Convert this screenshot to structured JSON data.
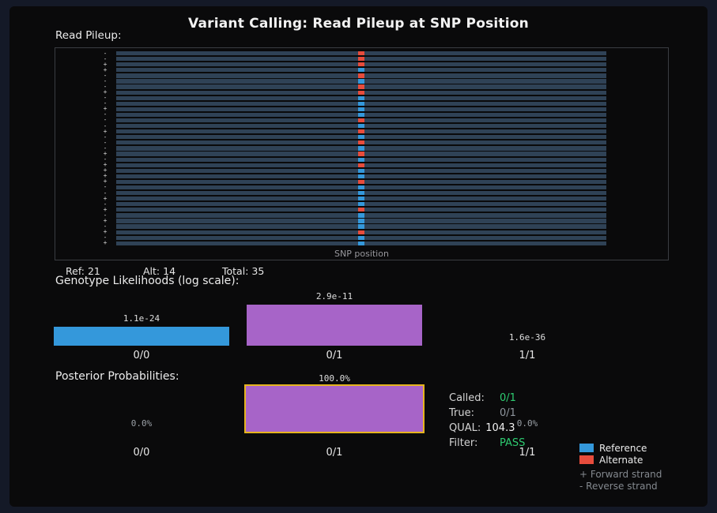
{
  "title": "Variant Calling: Read Pileup at SNP Position",
  "colors": {
    "background": "#141927",
    "panel": "#0a0a0b",
    "read_bar": "#2f4256",
    "reference_blue": "#3498db",
    "alternate_red": "#e74c3c",
    "het_purple": "#a764c8",
    "highlight_gold": "#e6b41e",
    "pass_green": "#2ecc71"
  },
  "pileup": {
    "heading": "Read Pileup:",
    "snp_axis_label": "SNP position",
    "stats": {
      "ref": "Ref: 21",
      "alt": "Alt: 14",
      "total": "Total: 35"
    },
    "reads": [
      {
        "strand": "-",
        "allele": "alt"
      },
      {
        "strand": "-",
        "allele": "alt"
      },
      {
        "strand": "+",
        "allele": "alt"
      },
      {
        "strand": "+",
        "allele": "ref"
      },
      {
        "strand": "-",
        "allele": "alt"
      },
      {
        "strand": "-",
        "allele": "ref"
      },
      {
        "strand": "-",
        "allele": "alt"
      },
      {
        "strand": "+",
        "allele": "alt"
      },
      {
        "strand": "-",
        "allele": "ref"
      },
      {
        "strand": "-",
        "allele": "ref"
      },
      {
        "strand": "+",
        "allele": "ref"
      },
      {
        "strand": "-",
        "allele": "ref"
      },
      {
        "strand": "-",
        "allele": "alt"
      },
      {
        "strand": "-",
        "allele": "ref"
      },
      {
        "strand": "+",
        "allele": "alt"
      },
      {
        "strand": "-",
        "allele": "ref"
      },
      {
        "strand": "-",
        "allele": "alt"
      },
      {
        "strand": "-",
        "allele": "ref"
      },
      {
        "strand": "+",
        "allele": "alt"
      },
      {
        "strand": "-",
        "allele": "ref"
      },
      {
        "strand": "+",
        "allele": "alt"
      },
      {
        "strand": "+",
        "allele": "ref"
      },
      {
        "strand": "+",
        "allele": "ref"
      },
      {
        "strand": "+",
        "allele": "alt"
      },
      {
        "strand": "-",
        "allele": "ref"
      },
      {
        "strand": "-",
        "allele": "ref"
      },
      {
        "strand": "+",
        "allele": "ref"
      },
      {
        "strand": "-",
        "allele": "ref"
      },
      {
        "strand": "+",
        "allele": "alt"
      },
      {
        "strand": "-",
        "allele": "ref"
      },
      {
        "strand": "+",
        "allele": "ref"
      },
      {
        "strand": "-",
        "allele": "ref"
      },
      {
        "strand": "+",
        "allele": "alt"
      },
      {
        "strand": "-",
        "allele": "ref"
      },
      {
        "strand": "+",
        "allele": "ref"
      }
    ]
  },
  "chart_data": [
    {
      "type": "bar",
      "title": "Genotype Likelihoods (log scale):",
      "categories": [
        "0/0",
        "0/1",
        "1/1"
      ],
      "values": [
        1.1e-24,
        2.9e-11,
        1.6e-36
      ],
      "value_labels": [
        "1.1e-24",
        "2.9e-11",
        "1.6e-36"
      ],
      "scale": "log",
      "bar_colors": [
        "#3498db",
        "#a764c8",
        "#a764c8"
      ],
      "grid": false,
      "legend_position": "none"
    },
    {
      "type": "bar",
      "title": "Posterior Probabilities:",
      "categories": [
        "0/0",
        "0/1",
        "1/1"
      ],
      "values": [
        0.0,
        100.0,
        0.0
      ],
      "value_labels": [
        "0.0%",
        "100.0%",
        "0.0%"
      ],
      "scale": "linear",
      "ylim": [
        0,
        100
      ],
      "bar_colors": [
        "#a764c8",
        "#a764c8",
        "#a764c8"
      ],
      "highlighted_index": 1,
      "grid": false,
      "legend_position": "none"
    }
  ],
  "call_summary": {
    "rows": [
      {
        "label": "Called:",
        "value": "0/1",
        "color": "green"
      },
      {
        "label": "True:",
        "value": "0/1",
        "color": "muted"
      },
      {
        "label": "QUAL:",
        "value": "104.3",
        "color": "white"
      },
      {
        "label": "Filter:",
        "value": "PASS",
        "color": "green"
      }
    ]
  },
  "legend": {
    "items": [
      {
        "label": "Reference",
        "swatch": "#3498db"
      },
      {
        "label": "Alternate",
        "swatch": "#e74c3c"
      }
    ],
    "notes": [
      "+ Forward strand",
      "- Reverse strand"
    ]
  }
}
